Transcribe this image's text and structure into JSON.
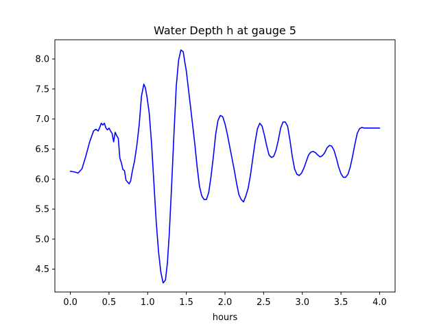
{
  "chart_data": {
    "type": "line",
    "title": "Water Depth h at gauge 5",
    "xlabel": "hours",
    "ylabel": "",
    "xlim": [
      -0.2,
      4.2
    ],
    "ylim": [
      4.12,
      8.32
    ],
    "xticks": [
      0.0,
      0.5,
      1.0,
      1.5,
      2.0,
      2.5,
      3.0,
      3.5,
      4.0
    ],
    "xtick_labels": [
      "0.0",
      "0.5",
      "1.0",
      "1.5",
      "2.0",
      "2.5",
      "3.0",
      "3.5",
      "4.0"
    ],
    "yticks": [
      4.5,
      5.0,
      5.5,
      6.0,
      6.5,
      7.0,
      7.5,
      8.0
    ],
    "ytick_labels": [
      "4.5",
      "5.0",
      "5.5",
      "6.0",
      "6.5",
      "7.0",
      "7.5",
      "8.0"
    ],
    "grid": false,
    "series": [
      {
        "color": "#0000ff",
        "x": [
          0.0,
          0.05,
          0.1,
          0.15,
          0.2,
          0.25,
          0.3,
          0.33,
          0.36,
          0.38,
          0.4,
          0.42,
          0.44,
          0.46,
          0.48,
          0.5,
          0.52,
          0.54,
          0.56,
          0.58,
          0.6,
          0.62,
          0.64,
          0.66,
          0.68,
          0.7,
          0.72,
          0.74,
          0.76,
          0.78,
          0.8,
          0.83,
          0.86,
          0.89,
          0.92,
          0.95,
          0.97,
          0.99,
          1.02,
          1.05,
          1.08,
          1.11,
          1.14,
          1.17,
          1.2,
          1.23,
          1.255,
          1.28,
          1.31,
          1.34,
          1.37,
          1.4,
          1.43,
          1.46,
          1.48,
          1.5,
          1.52,
          1.55,
          1.58,
          1.61,
          1.64,
          1.67,
          1.7,
          1.73,
          1.76,
          1.79,
          1.82,
          1.85,
          1.88,
          1.91,
          1.94,
          1.97,
          2.0,
          2.03,
          2.06,
          2.09,
          2.12,
          2.15,
          2.18,
          2.21,
          2.24,
          2.27,
          2.3,
          2.33,
          2.36,
          2.39,
          2.42,
          2.45,
          2.48,
          2.51,
          2.54,
          2.57,
          2.6,
          2.63,
          2.66,
          2.69,
          2.72,
          2.75,
          2.78,
          2.81,
          2.84,
          2.87,
          2.9,
          2.93,
          2.96,
          2.99,
          3.02,
          3.05,
          3.08,
          3.11,
          3.14,
          3.17,
          3.2,
          3.23,
          3.26,
          3.29,
          3.32,
          3.35,
          3.38,
          3.41,
          3.44,
          3.47,
          3.5,
          3.53,
          3.56,
          3.59,
          3.62,
          3.65,
          3.68,
          3.71,
          3.74,
          3.77,
          3.8,
          3.83,
          3.86,
          3.89,
          3.92,
          3.95,
          3.98,
          4.0
        ],
        "y": [
          6.13,
          6.12,
          6.1,
          6.17,
          6.38,
          6.62,
          6.8,
          6.83,
          6.8,
          6.86,
          6.93,
          6.9,
          6.93,
          6.85,
          6.82,
          6.85,
          6.8,
          6.76,
          6.62,
          6.78,
          6.72,
          6.68,
          6.35,
          6.27,
          6.16,
          6.14,
          5.98,
          5.95,
          5.92,
          5.97,
          6.12,
          6.3,
          6.56,
          6.9,
          7.38,
          7.58,
          7.52,
          7.38,
          7.1,
          6.6,
          5.95,
          5.3,
          4.8,
          4.45,
          4.27,
          4.32,
          4.6,
          5.1,
          5.9,
          6.75,
          7.55,
          7.98,
          8.15,
          8.12,
          7.95,
          7.8,
          7.58,
          7.25,
          6.92,
          6.58,
          6.2,
          5.88,
          5.72,
          5.66,
          5.66,
          5.78,
          6.05,
          6.38,
          6.75,
          6.98,
          7.06,
          7.04,
          6.92,
          6.75,
          6.55,
          6.35,
          6.15,
          5.93,
          5.74,
          5.66,
          5.62,
          5.72,
          5.85,
          6.07,
          6.35,
          6.62,
          6.84,
          6.93,
          6.88,
          6.73,
          6.55,
          6.4,
          6.36,
          6.38,
          6.48,
          6.65,
          6.85,
          6.95,
          6.95,
          6.88,
          6.65,
          6.38,
          6.17,
          6.08,
          6.06,
          6.1,
          6.18,
          6.29,
          6.4,
          6.45,
          6.46,
          6.44,
          6.4,
          6.37,
          6.39,
          6.44,
          6.52,
          6.56,
          6.55,
          6.48,
          6.35,
          6.2,
          6.09,
          6.03,
          6.03,
          6.08,
          6.2,
          6.38,
          6.58,
          6.76,
          6.84,
          6.86,
          6.85,
          6.85,
          6.85,
          6.85,
          6.85,
          6.85,
          6.85,
          6.85
        ]
      }
    ]
  }
}
